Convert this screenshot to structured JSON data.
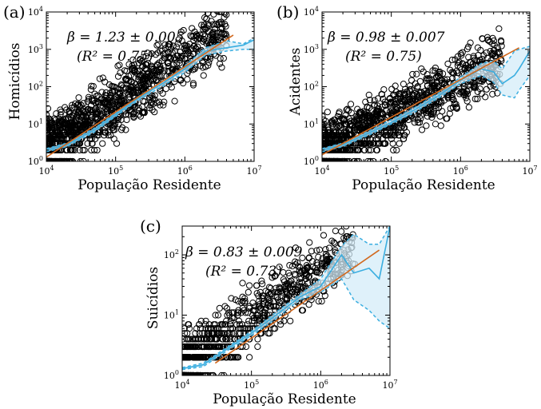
{
  "colors": {
    "points": "#000000",
    "fit_line": "#d2691e",
    "avg_line": "#3aaee0",
    "band_fill": "#d4ecf8",
    "band_edge": "#3aaee0"
  },
  "chart_data": [
    {
      "panel": "(a)",
      "type": "scatter",
      "xlabel": "População Residente",
      "ylabel": "Homicídios",
      "xscale": "log",
      "yscale": "log",
      "xlim": [
        10000,
        10000000
      ],
      "ylim": [
        1,
        10000
      ],
      "xticks": [
        {
          "exp": "4"
        },
        {
          "exp": "5"
        },
        {
          "exp": "6"
        },
        {
          "exp": "7"
        }
      ],
      "yticks": [
        {
          "exp": "0"
        },
        {
          "exp": "1"
        },
        {
          "exp": "2"
        },
        {
          "exp": "3"
        },
        {
          "exp": "4"
        }
      ],
      "annotation": {
        "beta": "β = 1.23 ± 0.005",
        "r2": "(R² = 0.75)"
      },
      "fit": {
        "beta": 1.23,
        "x": [
          10000,
          5000000
        ],
        "y": [
          1.3,
          2400
        ]
      },
      "avg_curve": {
        "x": [
          10000,
          20000,
          50000,
          100000,
          200000,
          500000,
          1000000,
          2000000,
          4000000,
          7000000,
          10000000
        ],
        "y": [
          2.0,
          2.8,
          7,
          18,
          45,
          130,
          300,
          900,
          1100,
          1300,
          1800
        ],
        "lower": [
          1.8,
          2.5,
          6.2,
          16,
          40,
          110,
          240,
          700,
          900,
          1000,
          1000
        ],
        "upper": [
          2.2,
          3.1,
          7.8,
          20,
          50,
          150,
          360,
          1100,
          1700,
          1400,
          2000
        ]
      },
      "scatter": {
        "logx_min": 4.0,
        "logx_max": 6.6,
        "slope": 1.23,
        "intercept": -4.62,
        "spread": 0.85,
        "n": 1300,
        "seed": 11
      }
    },
    {
      "panel": "(b)",
      "type": "scatter",
      "xlabel": "População Residente",
      "ylabel": "Acidentes",
      "xscale": "log",
      "yscale": "log",
      "xlim": [
        10000,
        10000000
      ],
      "ylim": [
        1,
        10000
      ],
      "xticks": [
        {
          "exp": "4"
        },
        {
          "exp": "5"
        },
        {
          "exp": "6"
        },
        {
          "exp": "7"
        }
      ],
      "yticks": [
        {
          "exp": "0"
        },
        {
          "exp": "1"
        },
        {
          "exp": "2"
        },
        {
          "exp": "3"
        },
        {
          "exp": "4"
        }
      ],
      "annotation": {
        "beta": "β = 0.98 ± 0.007",
        "r2": "(R² = 0.75)"
      },
      "fit": {
        "beta": 0.98,
        "x": [
          10000,
          7000000
        ],
        "y": [
          1.5,
          1100
        ]
      },
      "avg_curve": {
        "x": [
          10000,
          20000,
          50000,
          100000,
          200000,
          500000,
          1000000,
          2000000,
          3000000,
          4000000,
          6000000,
          7000000,
          10000000
        ],
        "y": [
          2.0,
          2.8,
          6,
          11,
          22,
          60,
          150,
          300,
          250,
          120,
          200,
          300,
          900
        ],
        "lower": [
          1.8,
          2.5,
          5.3,
          10,
          19,
          52,
          120,
          200,
          130,
          60,
          50,
          80,
          200
        ],
        "upper": [
          2.2,
          3.1,
          6.8,
          13,
          25,
          70,
          180,
          420,
          480,
          300,
          900,
          1000,
          1200
        ]
      },
      "scatter": {
        "logx_min": 4.0,
        "logx_max": 6.6,
        "slope": 0.98,
        "intercept": -3.7,
        "spread": 0.85,
        "n": 1300,
        "seed": 23
      }
    },
    {
      "panel": "(c)",
      "type": "scatter",
      "xlabel": "População Residente",
      "ylabel": "Suicídios",
      "xscale": "log",
      "yscale": "log",
      "xlim": [
        10000,
        10000000
      ],
      "ylim": [
        1,
        300
      ],
      "xticks": [
        {
          "exp": "4"
        },
        {
          "exp": "5"
        },
        {
          "exp": "6"
        },
        {
          "exp": "7"
        }
      ],
      "yticks": [
        {
          "exp": "0"
        },
        {
          "exp": "1"
        },
        {
          "exp": "2"
        }
      ],
      "annotation": {
        "beta": "β = 0.83 ± 0.009",
        "r2": "(R² = 0.73)"
      },
      "fit": {
        "beta": 0.83,
        "x": [
          30000,
          7000000
        ],
        "y": [
          1.6,
          120
        ]
      },
      "avg_curve": {
        "x": [
          10000,
          20000,
          50000,
          100000,
          200000,
          500000,
          1000000,
          2000000,
          3000000,
          5000000,
          7000000,
          10000000
        ],
        "y": [
          1.3,
          1.5,
          3,
          5,
          9,
          20,
          30,
          100,
          50,
          60,
          40,
          300
        ],
        "lower": [
          1.25,
          1.4,
          2.8,
          4.6,
          8,
          18,
          24,
          40,
          18,
          12,
          8,
          6
        ],
        "upper": [
          1.35,
          1.6,
          3.2,
          5.4,
          10,
          22,
          40,
          140,
          220,
          150,
          150,
          300
        ]
      },
      "scatter": {
        "logx_min": 4.0,
        "logx_max": 6.5,
        "slope": 0.83,
        "intercept": -3.2,
        "spread": 0.55,
        "n": 900,
        "seed": 37
      }
    }
  ]
}
